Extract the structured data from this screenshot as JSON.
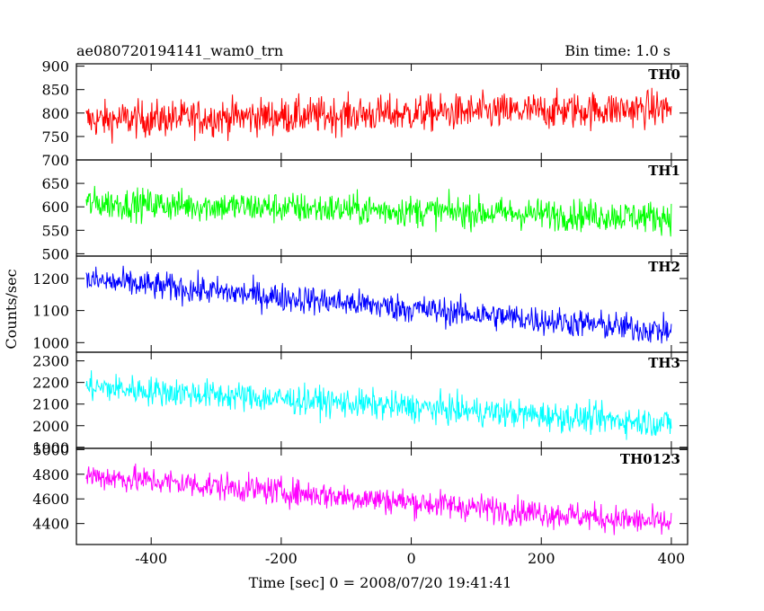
{
  "header": {
    "title": "ae080720194141_wam0_trn",
    "bin_time": "Bin time: 1.0 s"
  },
  "chart_data": {
    "type": "line",
    "xlabel": "Time [sec] 0 = 2008/07/20 19:41:41",
    "ylabel": "Counts/sec",
    "xlim": [
      -515,
      425
    ],
    "x_ticks": [
      -400,
      -200,
      0,
      200,
      400
    ],
    "x_range": [
      -500,
      400
    ],
    "bin": 1.0,
    "panels": [
      {
        "name": "TH0",
        "color": "#ff0000",
        "ylim": [
          700,
          905
        ],
        "y_ticks": [
          700,
          750,
          800,
          850,
          900
        ],
        "trend_start": 785,
        "trend_end": 810,
        "noise": 28
      },
      {
        "name": "TH1",
        "color": "#00ff00",
        "ylim": [
          495,
          700
        ],
        "y_ticks": [
          500,
          550,
          600,
          650
        ],
        "trend_start": 608,
        "trend_end": 578,
        "noise": 24
      },
      {
        "name": "TH2",
        "color": "#0000ff",
        "ylim": [
          970,
          1270
        ],
        "y_ticks": [
          1000,
          1100,
          1200
        ],
        "trend_start": 1195,
        "trend_end": 1035,
        "noise": 32
      },
      {
        "name": "TH3",
        "color": "#00ffff",
        "ylim": [
          1895,
          2340
        ],
        "y_ticks": [
          1900,
          2000,
          2100,
          2200,
          2300
        ],
        "trend_start": 2180,
        "trend_end": 2010,
        "noise": 48
      },
      {
        "name": "TH0123",
        "color": "#ff00ff",
        "ylim": [
          4230,
          5010
        ],
        "y_ticks": [
          4400,
          4600,
          4800,
          5000
        ],
        "trend_start": 4790,
        "trend_end": 4400,
        "noise": 80
      }
    ]
  }
}
